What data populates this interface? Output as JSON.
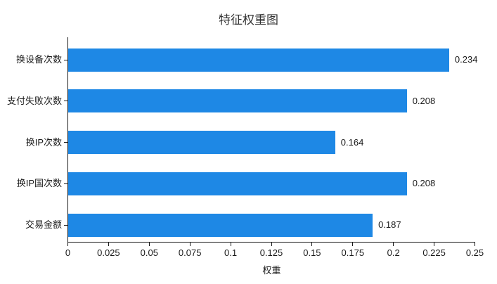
{
  "chart_data": {
    "type": "bar",
    "orientation": "horizontal",
    "title": "特征权重图",
    "xlabel": "权重",
    "ylabel": "",
    "categories": [
      "换设备次数",
      "支付失败次数",
      "换IP次数",
      "换IP国次数",
      "交易金额"
    ],
    "values": [
      0.234,
      0.208,
      0.164,
      0.208,
      0.187
    ],
    "data_labels": [
      "0.234",
      "0.208",
      "0.164",
      "0.208",
      "0.187"
    ],
    "xlim": [
      0,
      0.25
    ],
    "xtick_values": [
      0,
      0.025,
      0.05,
      0.075,
      0.1,
      0.125,
      0.15,
      0.175,
      0.2,
      0.225,
      0.25
    ],
    "xtick_labels": [
      "0",
      "0.025",
      "0.05",
      "0.075",
      "0.1",
      "0.125",
      "0.15",
      "0.175",
      "0.2",
      "0.225",
      "0.25"
    ],
    "grid": false,
    "legend": false,
    "colors": {
      "bar": "#1e88e5",
      "axis": "#1a1a1a",
      "text": "#1a1a1a",
      "background": "#ffffff"
    }
  }
}
